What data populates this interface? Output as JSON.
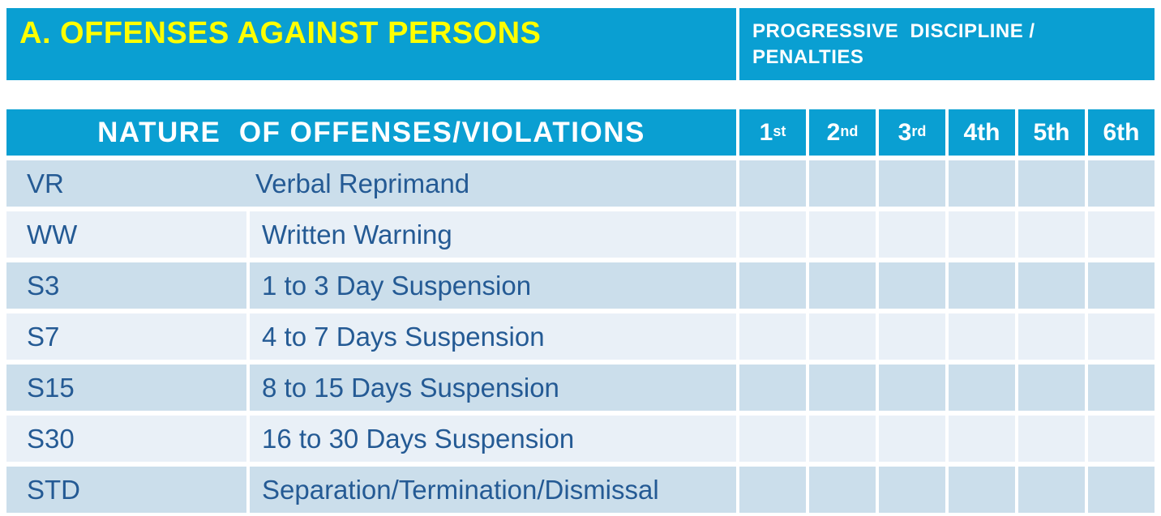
{
  "colors": {
    "band_bg": "#0a9fd2",
    "title_text": "#ffff00",
    "header_text": "#ffffff",
    "row_dark": "#cbdeeb",
    "row_light": "#e9f0f7",
    "body_text": "#245a94"
  },
  "top_band": {
    "title": "A. OFFENSES AGAINST PERSONS",
    "right_line1": "PROGRESSIVE  DISCIPLINE /",
    "right_line2": "PENALTIES"
  },
  "table": {
    "nature_header": "NATURE  OF OFFENSES/VIOLATIONS",
    "ordinals": [
      {
        "base": "1",
        "sup": "st"
      },
      {
        "base": "2",
        "sup": "nd"
      },
      {
        "base": "3",
        "sup": "rd"
      },
      {
        "base": "4th",
        "sup": ""
      },
      {
        "base": "5th",
        "sup": ""
      },
      {
        "base": "6th",
        "sup": ""
      }
    ],
    "rows": [
      {
        "code": "VR",
        "description": "Verbal Reprimand"
      },
      {
        "code": "WW",
        "description": "Written Warning"
      },
      {
        "code": "S3",
        "description": "1 to 3 Day Suspension"
      },
      {
        "code": "S7",
        "description": "4 to 7 Days Suspension"
      },
      {
        "code": "S15",
        "description": "8 to 15 Days Suspension"
      },
      {
        "code": "S30",
        "description": "16 to 30 Days Suspension"
      },
      {
        "code": "STD",
        "description": "Separation/Termination/Dismissal"
      }
    ]
  }
}
